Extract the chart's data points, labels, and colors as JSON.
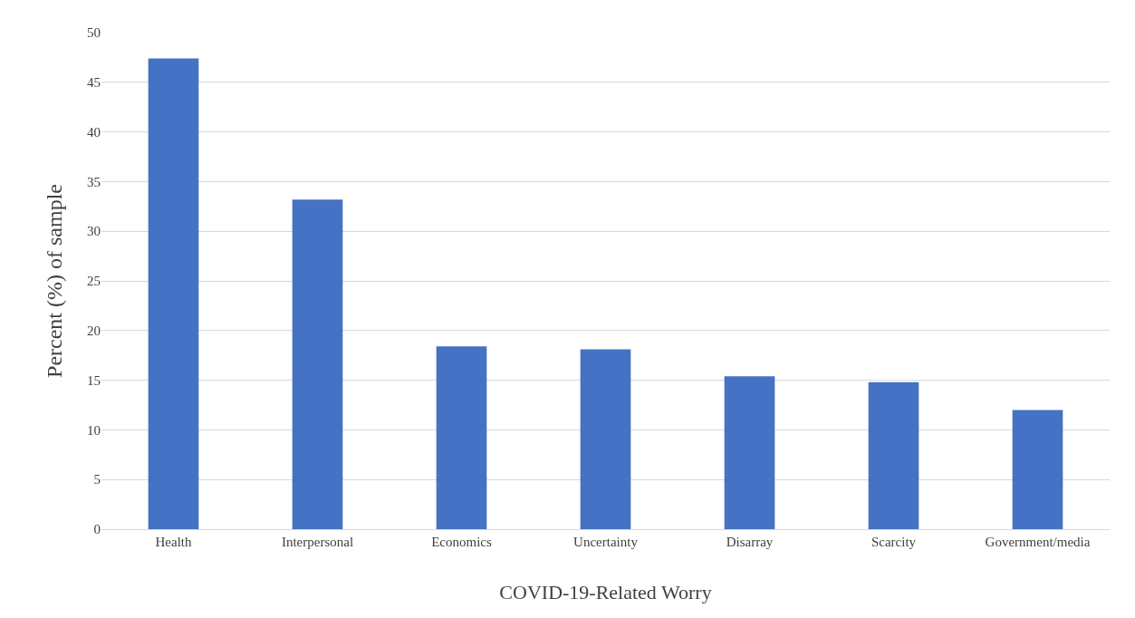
{
  "chart_data": {
    "type": "bar",
    "xlabel": "COVID-19-Related Worry",
    "ylabel": "Percent (%) of sample",
    "categories": [
      "Health",
      "Interpersonal",
      "Economics",
      "Uncertainty",
      "Disarray",
      "Scarcity",
      "Government/media"
    ],
    "values": [
      47.4,
      33.2,
      18.4,
      18.1,
      15.4,
      14.8,
      12.0
    ],
    "color": "#4472c4",
    "ylim": [
      0,
      50
    ],
    "yticks": [
      0,
      5,
      10,
      15,
      20,
      25,
      30,
      35,
      40,
      45,
      50
    ],
    "grid": "y"
  }
}
